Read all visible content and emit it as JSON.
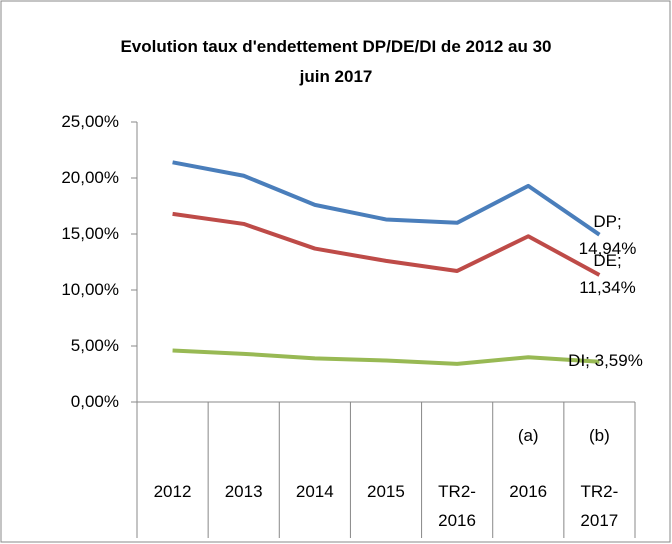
{
  "chart_data": {
    "type": "line",
    "title": "Evolution taux d'endettement DP/DE/DI de 2012 au 30 juin 2017",
    "categories": [
      "2012",
      "2013",
      "2014",
      "2015",
      "TR2-2016",
      "2016",
      "TR2-2017"
    ],
    "annotations": [
      null,
      null,
      null,
      null,
      null,
      "(a)",
      "(b)"
    ],
    "series": [
      {
        "name": "DP",
        "color": "#4a7ebb",
        "values": [
          21.4,
          20.2,
          17.6,
          16.3,
          16.0,
          19.3,
          14.94
        ],
        "value_labels": [
          null,
          null,
          null,
          null,
          null,
          null,
          "DP; 14,94%"
        ]
      },
      {
        "name": "DE",
        "color": "#be4b48",
        "values": [
          16.8,
          15.9,
          13.7,
          12.6,
          11.7,
          14.8,
          11.34
        ],
        "value_labels": [
          null,
          null,
          null,
          null,
          null,
          null,
          "DE; 11,34%"
        ]
      },
      {
        "name": "DI",
        "color": "#98b954",
        "values": [
          4.6,
          4.3,
          3.9,
          3.7,
          3.4,
          4.0,
          3.59
        ],
        "value_labels": [
          null,
          null,
          null,
          null,
          null,
          null,
          "DI; 3,59%"
        ]
      }
    ],
    "ylim": [
      0,
      25
    ],
    "yticks": [
      {
        "value": 0,
        "label": "0,00%"
      },
      {
        "value": 5,
        "label": "5,00%"
      },
      {
        "value": 10,
        "label": "10,00%"
      },
      {
        "value": 15,
        "label": "15,00%"
      },
      {
        "value": 20,
        "label": "20,00%"
      },
      {
        "value": 25,
        "label": "25,00%"
      }
    ],
    "grid": false
  }
}
